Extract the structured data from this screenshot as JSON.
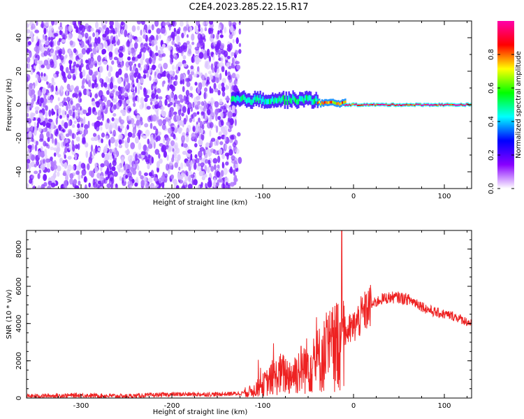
{
  "title": "C2E4.2023.285.22.15.R17",
  "chart_data": [
    {
      "type": "heatmap",
      "xlabel": "Height of straight line (km)",
      "ylabel": "Frequency (Hz)",
      "xlim": [
        -360,
        130
      ],
      "ylim": [
        -50,
        50
      ],
      "xticks": [
        -300,
        -200,
        -100,
        0,
        100
      ],
      "yticks": [
        -40,
        -20,
        0,
        20,
        40
      ],
      "colorbar": {
        "label": "Normalized spectral amplitude",
        "range": [
          0,
          1
        ],
        "ticks": [
          0.0,
          0.2,
          0.4,
          0.6,
          0.8
        ],
        "colors": [
          "#ffffff",
          "#8800ff",
          "#0000ff",
          "#00ffff",
          "#00ff00",
          "#ffff00",
          "#ff0000",
          "#ff00aa"
        ]
      },
      "regions": [
        {
          "x_range": [
            -360,
            -125
          ],
          "freq_range": [
            -50,
            50
          ],
          "amplitude": 0.05,
          "pattern": "noise"
        },
        {
          "x_range": [
            -135,
            -40
          ],
          "center_freq": 3,
          "width_hz": 8,
          "amplitude": 0.5
        },
        {
          "x_range": [
            -40,
            -10
          ],
          "center_freq": 1,
          "width_hz": 4,
          "amplitude": 0.8
        },
        {
          "x_range": [
            -10,
            130
          ],
          "center_freq": 0,
          "width_hz": 2,
          "amplitude": 0.95
        }
      ]
    },
    {
      "type": "line",
      "xlabel": "Height of straight line (km)",
      "ylabel": "SNR (10 * v/v)",
      "xlim": [
        -360,
        130
      ],
      "ylim": [
        0,
        9000
      ],
      "xticks": [
        -300,
        -200,
        -100,
        0,
        100
      ],
      "yticks": [
        0,
        2000,
        4000,
        6000,
        8000
      ],
      "series": [
        {
          "color": "#ee2222",
          "x": [
            -360,
            -300,
            -250,
            -200,
            -150,
            -125,
            -110,
            -100,
            -90,
            -80,
            -70,
            -60,
            -50,
            -40,
            -30,
            -20,
            -15,
            -10,
            -5,
            0,
            10,
            20,
            30,
            40,
            50,
            60,
            70,
            80,
            90,
            100,
            110,
            120,
            130
          ],
          "y": [
            100,
            150,
            100,
            200,
            200,
            250,
            400,
            700,
            1000,
            1300,
            1200,
            1500,
            1800,
            2000,
            2400,
            2800,
            3200,
            3500,
            3600,
            3800,
            4500,
            5000,
            5300,
            5400,
            5400,
            5300,
            5100,
            4800,
            4600,
            4500,
            4400,
            4200,
            4000
          ]
        }
      ]
    }
  ]
}
